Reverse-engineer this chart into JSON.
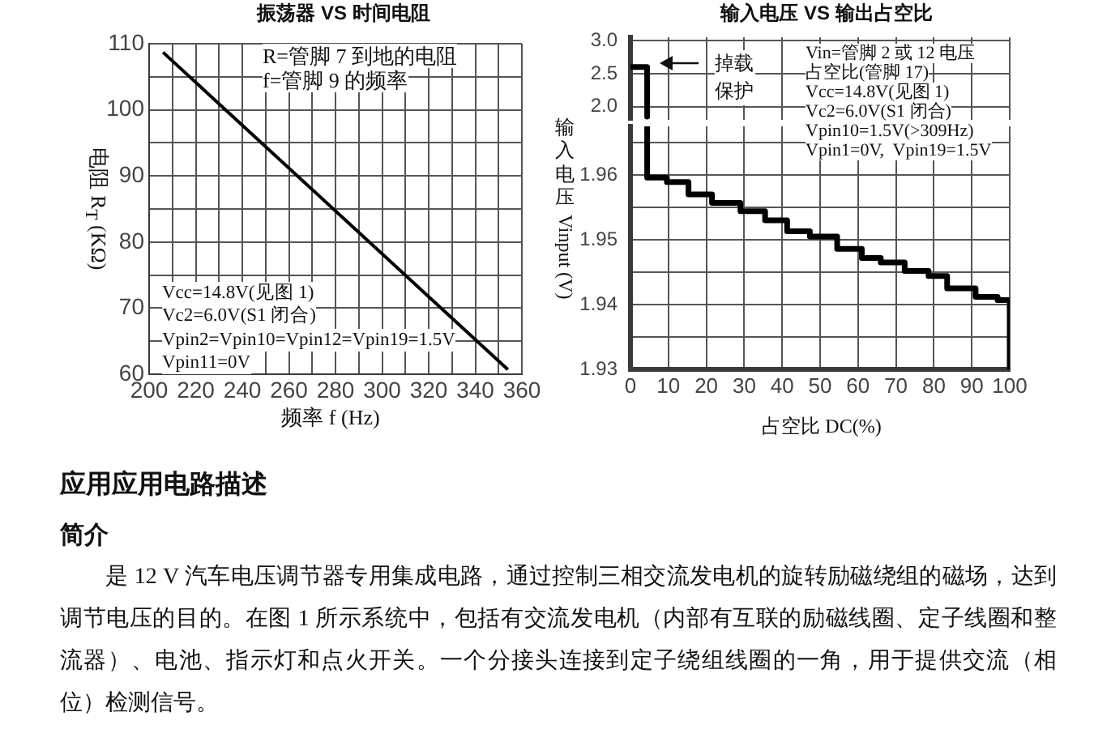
{
  "chart_data": [
    {
      "type": "line",
      "title": "振荡器 VS 时间电阻",
      "xlabel": "频率 f (Hz)",
      "ylabel": "电阻 R$_{T}$ (KΩ)",
      "x": [
        206,
        354
      ],
      "values": [
        108.7,
        60.7
      ],
      "color": "#000000",
      "xlim": [
        200,
        360
      ],
      "ylim": [
        60,
        110
      ],
      "xticks": [
        200,
        {
          "value": 210,
          "label": null
        },
        220,
        {
          "value": 230,
          "label": null
        },
        240,
        {
          "value": 250,
          "label": null
        },
        260,
        {
          "value": 270,
          "label": null
        },
        280,
        {
          "value": 290,
          "label": null
        },
        300,
        {
          "value": 310,
          "label": null
        },
        320,
        {
          "value": 330,
          "label": null
        },
        340,
        {
          "value": 350,
          "label": null
        },
        360
      ],
      "yticks": [
        60,
        {
          "value": 65,
          "label": null
        },
        70,
        {
          "value": 75,
          "label": null
        },
        80,
        {
          "value": 85,
          "label": null
        },
        90,
        {
          "value": 95,
          "label": null
        },
        100,
        {
          "value": 105,
          "label": null
        },
        110
      ],
      "grid": true,
      "annotations": [
        "R=管脚 7 到地的电阻",
        "f=管脚 9 的频率",
        "Vcc=14.8V(见图 1)",
        "Vc2=6.0V(S1 闭合)",
        "Vpin2=Vpin10=Vpin12=Vpin19=1.5V",
        "Vpin11=0V"
      ]
    },
    {
      "type": "line",
      "title": "输入电压 VS 输出占空比",
      "x": [
        0,
        4.4,
        4.4
      ],
      "values": [
        2.6,
        2.6,
        1.85
      ],
      "color": "#000000",
      "xlim": [
        0,
        100
      ],
      "ylim": [
        1.8,
        3.05
      ],
      "xticks": [
        0,
        10,
        20,
        30,
        40,
        50,
        60,
        70,
        80,
        90,
        100
      ],
      "yticks": [
        {
          "value": 2,
          "label": "2.0"
        },
        2.5,
        {
          "value": 3,
          "label": "3.0"
        }
      ],
      "grid": true,
      "tick_labels": "y",
      "annotations": [
        "掉载保护",
        "Vin=管脚 2 或 12 电压",
        "占空比(管脚 17)",
        "Vcc=14.8V(见图 1)",
        "Vc2=6.0V(S1 闭合)",
        "Vpin10=1.5V(>309Hz)",
        "Vpin1=0V,  Vpin19=1.5V"
      ]
    },
    {
      "type": "step",
      "xlabel": "占空比 DC(%)",
      "ylabel": "输入电压 Vinput (V)",
      "x": [
        4.4,
        4.4,
        9.6,
        15.3,
        21.5,
        29,
        35.5,
        41.3,
        47.3,
        54.5,
        61,
        66,
        72.3,
        78.6,
        83.5,
        91,
        96.8,
        100
      ],
      "values": [
        1.9675,
        1.9596,
        1.9589,
        1.957,
        1.9557,
        1.9544,
        1.953,
        1.9513,
        1.9505,
        1.9486,
        1.9472,
        1.9465,
        1.9452,
        1.9444,
        1.9425,
        1.9412,
        1.9407,
        1.93
      ],
      "color": "#000000",
      "xlim": [
        0,
        100
      ],
      "ylim": [
        1.93,
        1.9675
      ],
      "xticks": [
        0,
        10,
        20,
        30,
        40,
        50,
        60,
        70,
        80,
        90,
        100
      ],
      "yticks": [
        1.93,
        {
          "value": 1.935,
          "label": null
        },
        1.94,
        {
          "value": 1.945,
          "label": null
        },
        1.95,
        {
          "value": 1.955,
          "label": null
        },
        1.96,
        {
          "value": 1.965,
          "label": null
        }
      ],
      "grid": true
    },
    {
      "type": "other",
      "title": "应用应用电路描述",
      "subtitle": "简介",
      "annotations": [
        "是 12 V 汽车电压调节器专用集成电路，通过控制三相交流发电机的旋转励磁绕组的磁场，达到调节电压的目的。在图 1 所示系统中，包括有交流发电机（内部有互联的励磁线圈、定子线圈和整流器）、电池、指示灯和点火开关。一个分接头连接到定子绕组线圈的一角，用于提供交流（相位）检测信号。"
      ]
    }
  ]
}
